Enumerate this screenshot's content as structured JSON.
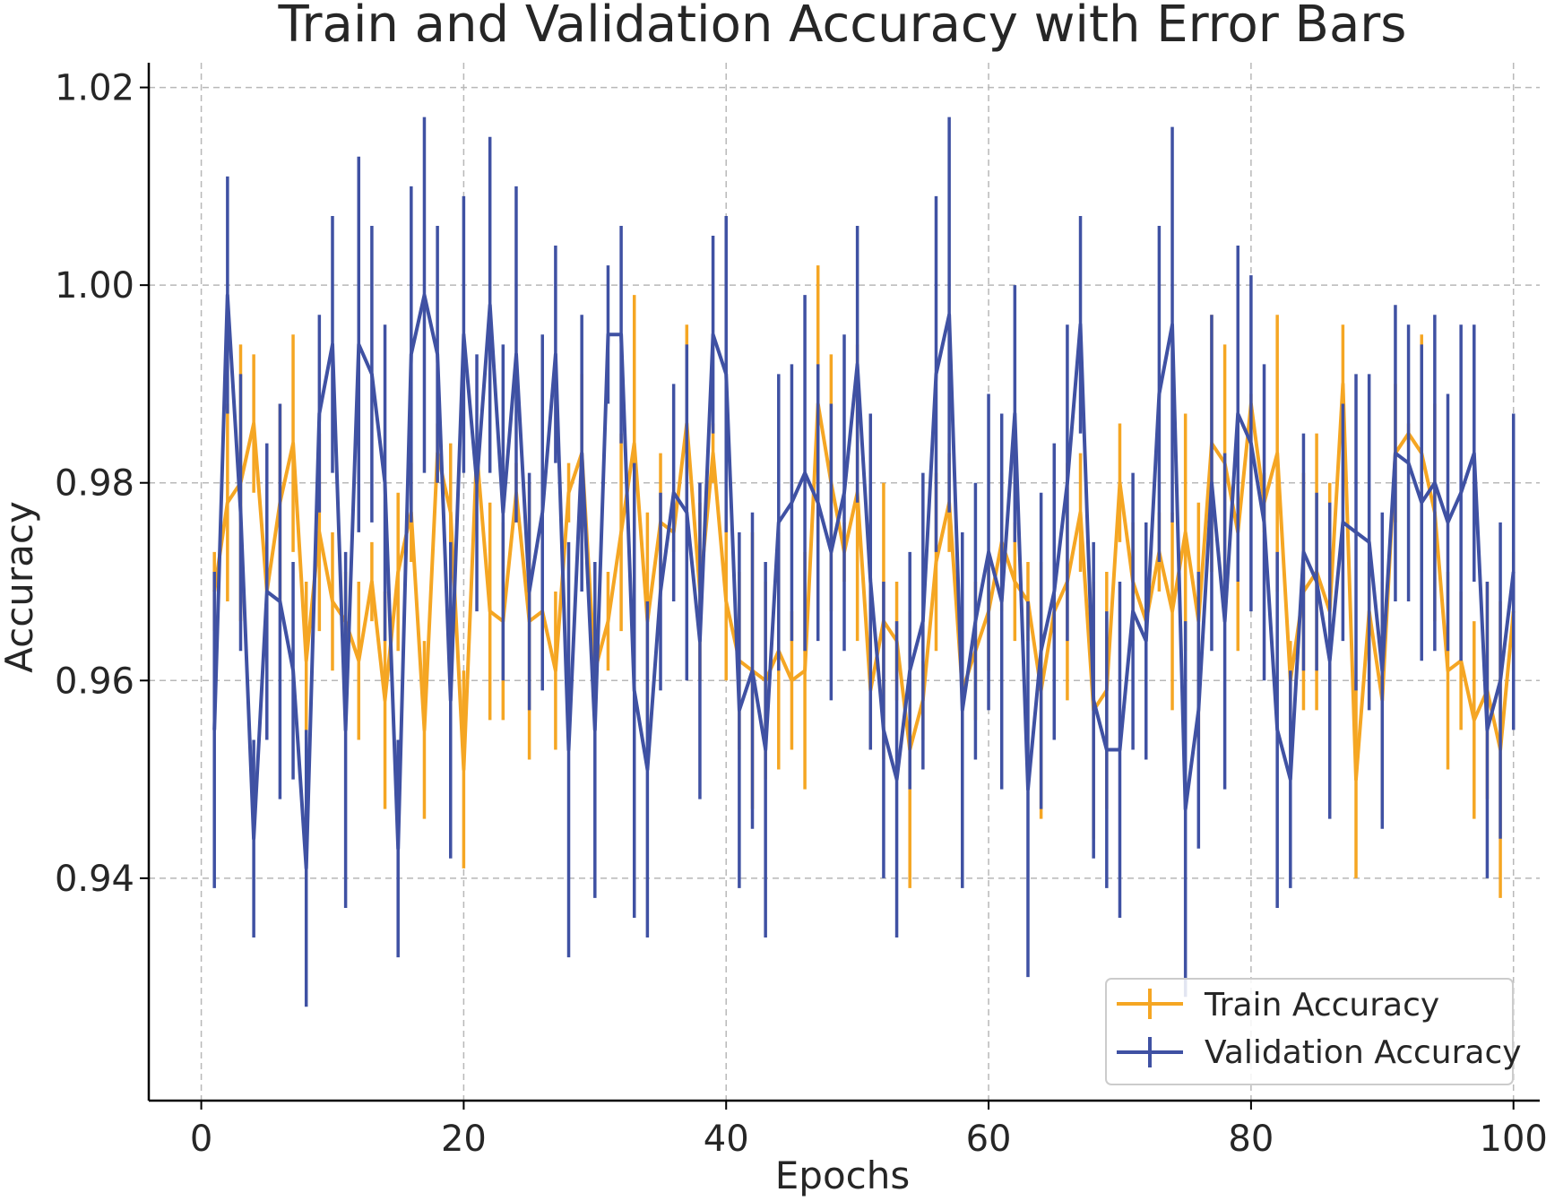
{
  "chart_data": {
    "type": "line",
    "title": "Train and Validation Accuracy with Error Bars",
    "xlabel": "Epochs",
    "ylabel": "Accuracy",
    "xlim": [
      -4,
      102
    ],
    "ylim": [
      0.9175,
      1.0225
    ],
    "x_ticks": [
      0,
      20,
      40,
      60,
      80,
      100
    ],
    "x_tick_labels": [
      "0",
      "20",
      "40",
      "60",
      "80",
      "100"
    ],
    "y_ticks": [
      0.94,
      0.96,
      0.98,
      1.0,
      1.02
    ],
    "y_tick_labels": [
      "0.94",
      "0.96",
      "0.98",
      "1.00",
      "1.02"
    ],
    "grid": true,
    "legend_position": "lower right",
    "error_bars": true,
    "x": [
      1,
      2,
      3,
      4,
      5,
      6,
      7,
      8,
      9,
      10,
      11,
      12,
      13,
      14,
      15,
      16,
      17,
      18,
      19,
      20,
      21,
      22,
      23,
      24,
      25,
      26,
      27,
      28,
      29,
      30,
      31,
      32,
      33,
      34,
      35,
      36,
      37,
      38,
      39,
      40,
      41,
      42,
      43,
      44,
      45,
      46,
      47,
      48,
      49,
      50,
      51,
      52,
      53,
      54,
      55,
      56,
      57,
      58,
      59,
      60,
      61,
      62,
      63,
      64,
      65,
      66,
      67,
      68,
      69,
      70,
      71,
      72,
      73,
      74,
      75,
      76,
      77,
      78,
      79,
      80,
      81,
      82,
      83,
      84,
      85,
      86,
      87,
      88,
      89,
      90,
      91,
      92,
      93,
      94,
      95,
      96,
      97,
      98,
      99,
      100
    ],
    "series": [
      {
        "name": "Train Accuracy",
        "color": "#F5A623",
        "values": [
          0.969,
          0.978,
          0.98,
          0.986,
          0.969,
          0.978,
          0.984,
          0.962,
          0.975,
          0.968,
          0.966,
          0.962,
          0.97,
          0.958,
          0.971,
          0.977,
          0.955,
          0.983,
          0.977,
          0.951,
          0.983,
          0.967,
          0.966,
          0.979,
          0.966,
          0.967,
          0.961,
          0.979,
          0.983,
          0.961,
          0.966,
          0.975,
          0.984,
          0.966,
          0.976,
          0.975,
          0.986,
          0.969,
          0.983,
          0.968,
          0.962,
          0.961,
          0.96,
          0.963,
          0.96,
          0.961,
          0.988,
          0.98,
          0.973,
          0.979,
          0.959,
          0.966,
          0.964,
          0.953,
          0.958,
          0.972,
          0.978,
          0.959,
          0.963,
          0.967,
          0.974,
          0.97,
          0.968,
          0.959,
          0.967,
          0.97,
          0.977,
          0.957,
          0.959,
          0.98,
          0.97,
          0.966,
          0.973,
          0.967,
          0.975,
          0.966,
          0.984,
          0.982,
          0.975,
          0.988,
          0.978,
          0.983,
          0.96,
          0.969,
          0.971,
          0.967,
          0.99,
          0.95,
          0.967,
          0.958,
          0.983,
          0.985,
          0.983,
          0.977,
          0.961,
          0.962,
          0.956,
          0.959,
          0.953,
          0.967
        ],
        "errors": [
          0.004,
          0.01,
          0.014,
          0.007,
          0.005,
          0.01,
          0.011,
          0.008,
          0.01,
          0.007,
          0.005,
          0.008,
          0.004,
          0.011,
          0.008,
          0.005,
          0.009,
          0.003,
          0.007,
          0.01,
          0.001,
          0.011,
          0.01,
          0.003,
          0.014,
          0.007,
          0.008,
          0.003,
          0.008,
          0.004,
          0.005,
          0.01,
          0.015,
          0.011,
          0.007,
          0.002,
          0.01,
          0.009,
          0.003,
          0.008,
          0.009,
          0.014,
          0.01,
          0.012,
          0.007,
          0.012,
          0.014,
          0.013,
          0.003,
          0.015,
          0.006,
          0.014,
          0.006,
          0.014,
          0.004,
          0.009,
          0.005,
          0.006,
          0.007,
          0.006,
          0.007,
          0.006,
          0.004,
          0.013,
          0.004,
          0.012,
          0.006,
          0.013,
          0.012,
          0.006,
          0.006,
          0.009,
          0.004,
          0.01,
          0.012,
          0.012,
          0.013,
          0.012,
          0.012,
          0.001,
          0.003,
          0.014,
          0.004,
          0.012,
          0.014,
          0.013,
          0.006,
          0.01,
          0.005,
          0.012,
          0.007,
          0.001,
          0.012,
          0.011,
          0.01,
          0.007,
          0.01,
          0.011,
          0.015,
          0.006
        ]
      },
      {
        "name": "Validation Accuracy",
        "color": "#3F51A3",
        "values": [
          0.955,
          0.999,
          0.977,
          0.944,
          0.969,
          0.968,
          0.961,
          0.941,
          0.987,
          0.994,
          0.955,
          0.994,
          0.991,
          0.98,
          0.943,
          0.993,
          0.999,
          0.993,
          0.958,
          0.995,
          0.98,
          0.998,
          0.977,
          0.993,
          0.969,
          0.977,
          0.993,
          0.953,
          0.983,
          0.955,
          0.995,
          0.995,
          0.959,
          0.951,
          0.969,
          0.979,
          0.977,
          0.964,
          0.995,
          0.991,
          0.957,
          0.961,
          0.953,
          0.976,
          0.978,
          0.981,
          0.978,
          0.973,
          0.979,
          0.992,
          0.97,
          0.955,
          0.95,
          0.961,
          0.966,
          0.991,
          0.997,
          0.957,
          0.966,
          0.973,
          0.968,
          0.987,
          0.949,
          0.963,
          0.969,
          0.98,
          0.996,
          0.958,
          0.953,
          0.953,
          0.967,
          0.964,
          0.989,
          0.996,
          0.947,
          0.957,
          0.98,
          0.966,
          0.987,
          0.984,
          0.976,
          0.955,
          0.95,
          0.973,
          0.97,
          0.962,
          0.976,
          0.975,
          0.974,
          0.961,
          0.983,
          0.982,
          0.978,
          0.98,
          0.976,
          0.979,
          0.983,
          0.955,
          0.96,
          0.971
        ],
        "errors": [
          0.016,
          0.012,
          0.014,
          0.01,
          0.015,
          0.02,
          0.011,
          0.014,
          0.01,
          0.013,
          0.018,
          0.019,
          0.015,
          0.016,
          0.011,
          0.017,
          0.018,
          0.013,
          0.016,
          0.014,
          0.013,
          0.017,
          0.017,
          0.017,
          0.012,
          0.018,
          0.011,
          0.021,
          0.014,
          0.017,
          0.007,
          0.011,
          0.023,
          0.017,
          0.01,
          0.011,
          0.017,
          0.016,
          0.01,
          0.016,
          0.018,
          0.016,
          0.019,
          0.015,
          0.014,
          0.018,
          0.014,
          0.015,
          0.016,
          0.014,
          0.017,
          0.015,
          0.016,
          0.012,
          0.015,
          0.018,
          0.02,
          0.018,
          0.014,
          0.016,
          0.019,
          0.013,
          0.019,
          0.016,
          0.015,
          0.016,
          0.011,
          0.016,
          0.014,
          0.017,
          0.014,
          0.012,
          0.017,
          0.02,
          0.019,
          0.014,
          0.017,
          0.017,
          0.017,
          0.017,
          0.016,
          0.018,
          0.011,
          0.012,
          0.009,
          0.016,
          0.012,
          0.016,
          0.017,
          0.016,
          0.015,
          0.014,
          0.016,
          0.017,
          0.013,
          0.017,
          0.013,
          0.015,
          0.016,
          0.016
        ]
      }
    ]
  }
}
